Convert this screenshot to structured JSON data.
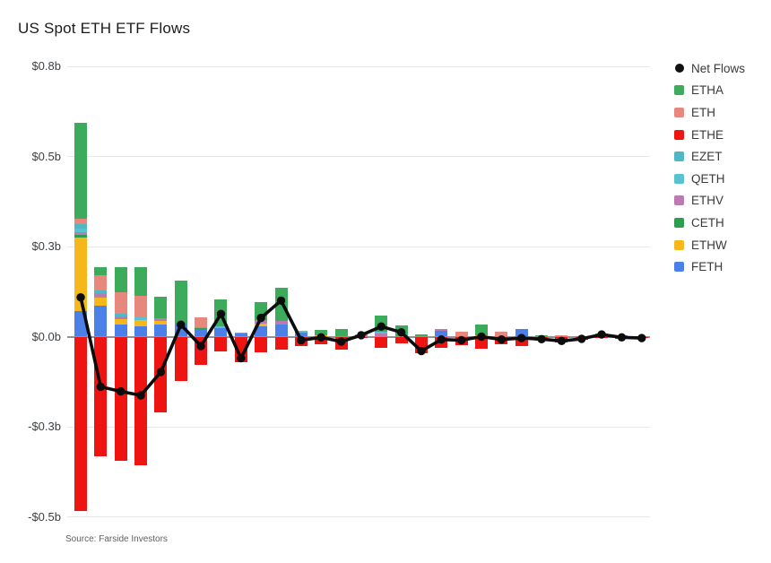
{
  "title": "US Spot ETH ETF Flows",
  "source": "Source: Farside Investors",
  "chart_data": {
    "type": "bar",
    "subtype": "stacked-bar-with-net-line",
    "title": "US Spot ETH ETF Flows",
    "unit": "$ billions per day",
    "grid": "horizontal-on",
    "legend_position": "right",
    "y_axis": {
      "tick_labels": [
        "$0.8b",
        "$0.5b",
        "$0.3b",
        "$0.0b",
        "-$0.3b",
        "-$0.5b"
      ],
      "tick_values": [
        0.75,
        0.5,
        0.25,
        0,
        -0.25,
        -0.5
      ],
      "range": [
        -0.55,
        0.8
      ]
    },
    "x_axis": {
      "labels_visible": false,
      "bar_count": 29
    },
    "legend": [
      {
        "label": "Net Flows",
        "marker": "circle",
        "color": "#111111"
      },
      {
        "label": "ETHA",
        "marker": "square",
        "color": "#3cab5c"
      },
      {
        "label": "ETH",
        "marker": "square",
        "color": "#e8887c"
      },
      {
        "label": "ETHE",
        "marker": "square",
        "color": "#ee1411"
      },
      {
        "label": "EZET",
        "marker": "square",
        "color": "#4fb8c5"
      },
      {
        "label": "QETH",
        "marker": "square",
        "color": "#56c3cf"
      },
      {
        "label": "ETHV",
        "marker": "square",
        "color": "#bc7ab2"
      },
      {
        "label": "CETH",
        "marker": "square",
        "color": "#2d9e50"
      },
      {
        "label": "ETHW",
        "marker": "square",
        "color": "#f6b71b"
      },
      {
        "label": "FETH",
        "marker": "square",
        "color": "#4c80e9"
      }
    ],
    "series_colors": {
      "ETHA": "#3cab5c",
      "ETH": "#e8887c",
      "ETHE": "#ee1411",
      "EZET": "#4fb8c5",
      "QETH": "#56c3cf",
      "ETHV": "#bc7ab2",
      "CETH": "#2d9e50",
      "ETHW": "#f6b71b",
      "FETH": "#4c80e9"
    },
    "stack_order_bottom_to_top": [
      "FETH",
      "ETHW",
      "CETH",
      "ETHV",
      "QETH",
      "EZET",
      "ETH",
      "ETHA",
      "ETHE"
    ],
    "bars": [
      {
        "ETHA": 0.266,
        "ETH": 0.015,
        "EZET": 0.013,
        "QETH": 0.01,
        "ETHV": 0.008,
        "CETH": 0.007,
        "ETHW": 0.204,
        "FETH": 0.071,
        "ETHE": -0.485
      },
      {
        "ETHA": 0.022,
        "ETH": 0.043,
        "EZET": 0.008,
        "ETHV": 0.012,
        "ETHW": 0.022,
        "FETH": 0.086,
        "ETHE": -0.332
      },
      {
        "ETHA": 0.069,
        "ETH": 0.06,
        "EZET": 0.008,
        "ETHV": 0.007,
        "ETHW": 0.016,
        "FETH": 0.033,
        "ETHE": -0.345
      },
      {
        "ETHA": 0.081,
        "ETH": 0.058,
        "QETH": 0.008,
        "ETHW": 0.018,
        "FETH": 0.029,
        "ETHE": -0.357
      },
      {
        "ETHA": 0.06,
        "ETHV": 0.008,
        "ETHW": 0.01,
        "FETH": 0.033,
        "ETHE": -0.209
      },
      {
        "ETHA": 0.118,
        "FETH": 0.037,
        "ETHE": -0.122
      },
      {
        "ETH": 0.026,
        "CETH": 0.004,
        "EZET": 0.003,
        "FETH": 0.02,
        "ETHE": -0.079
      },
      {
        "ETHA": 0.076,
        "QETH": 0.004,
        "FETH": 0.024,
        "ETHE": -0.041
      },
      {
        "EZET": 0.002,
        "FETH": 0.008,
        "ETHE": -0.07
      },
      {
        "ETHA": 0.051,
        "ETHV": 0.008,
        "ETHW": 0.008,
        "FETH": 0.029,
        "ETHE": -0.044
      },
      {
        "ETHA": 0.091,
        "ETHV": 0.011,
        "FETH": 0.033,
        "ETHE": -0.035
      },
      {
        "QETH": 0.005,
        "FETH": 0.01,
        "ETHE": -0.025
      },
      {
        "ETHA": 0.015,
        "ETHW": 0.004,
        "ETHE": -0.021
      },
      {
        "ETHA": 0.022,
        "ETHE": -0.036
      },
      {
        "ETHV": 0.005,
        "ETHE": -0.001
      },
      {
        "ETHA": 0.045,
        "ETHV": 0.008,
        "QETH": 0.005,
        "ETHE": -0.03
      },
      {
        "ETHA": 0.031,
        "ETHE": -0.019
      },
      {
        "ETHA": 0.006,
        "ETHE": -0.046
      },
      {
        "FETH": 0.017,
        "ETHV": 0.005,
        "ETHE": -0.03
      },
      {
        "ETH": 0.014,
        "ETHE": -0.024
      },
      {
        "ETHA": 0.03,
        "ETHW": 0.004,
        "ETHE": -0.034
      },
      {
        "ETH": 0.014,
        "ETHE": -0.022
      },
      {
        "FETH": 0.021,
        "ETHE": -0.025
      },
      {
        "ETHA": 0.003,
        "ETHE": -0.01
      },
      {
        "ETH": 0.003,
        "ETHE": -0.015
      },
      {
        "ETHA": 0.002,
        "ETHE": -0.008
      },
      {
        "ETHA": 0.005,
        "QETH": 0.003,
        "ETHE": -0.002
      },
      {
        "FETH": 0.003,
        "ETHE": -0.005
      },
      {
        "ETHE": -0.004
      }
    ],
    "net_flows": [
      0.109,
      -0.139,
      -0.152,
      -0.163,
      -0.098,
      0.033,
      -0.026,
      0.063,
      -0.06,
      0.052,
      0.1,
      -0.01,
      -0.002,
      -0.014,
      0.004,
      0.028,
      0.012,
      -0.04,
      -0.008,
      -0.01,
      0.0,
      -0.008,
      -0.004,
      -0.007,
      -0.012,
      -0.006,
      0.006,
      -0.002,
      -0.004
    ]
  }
}
